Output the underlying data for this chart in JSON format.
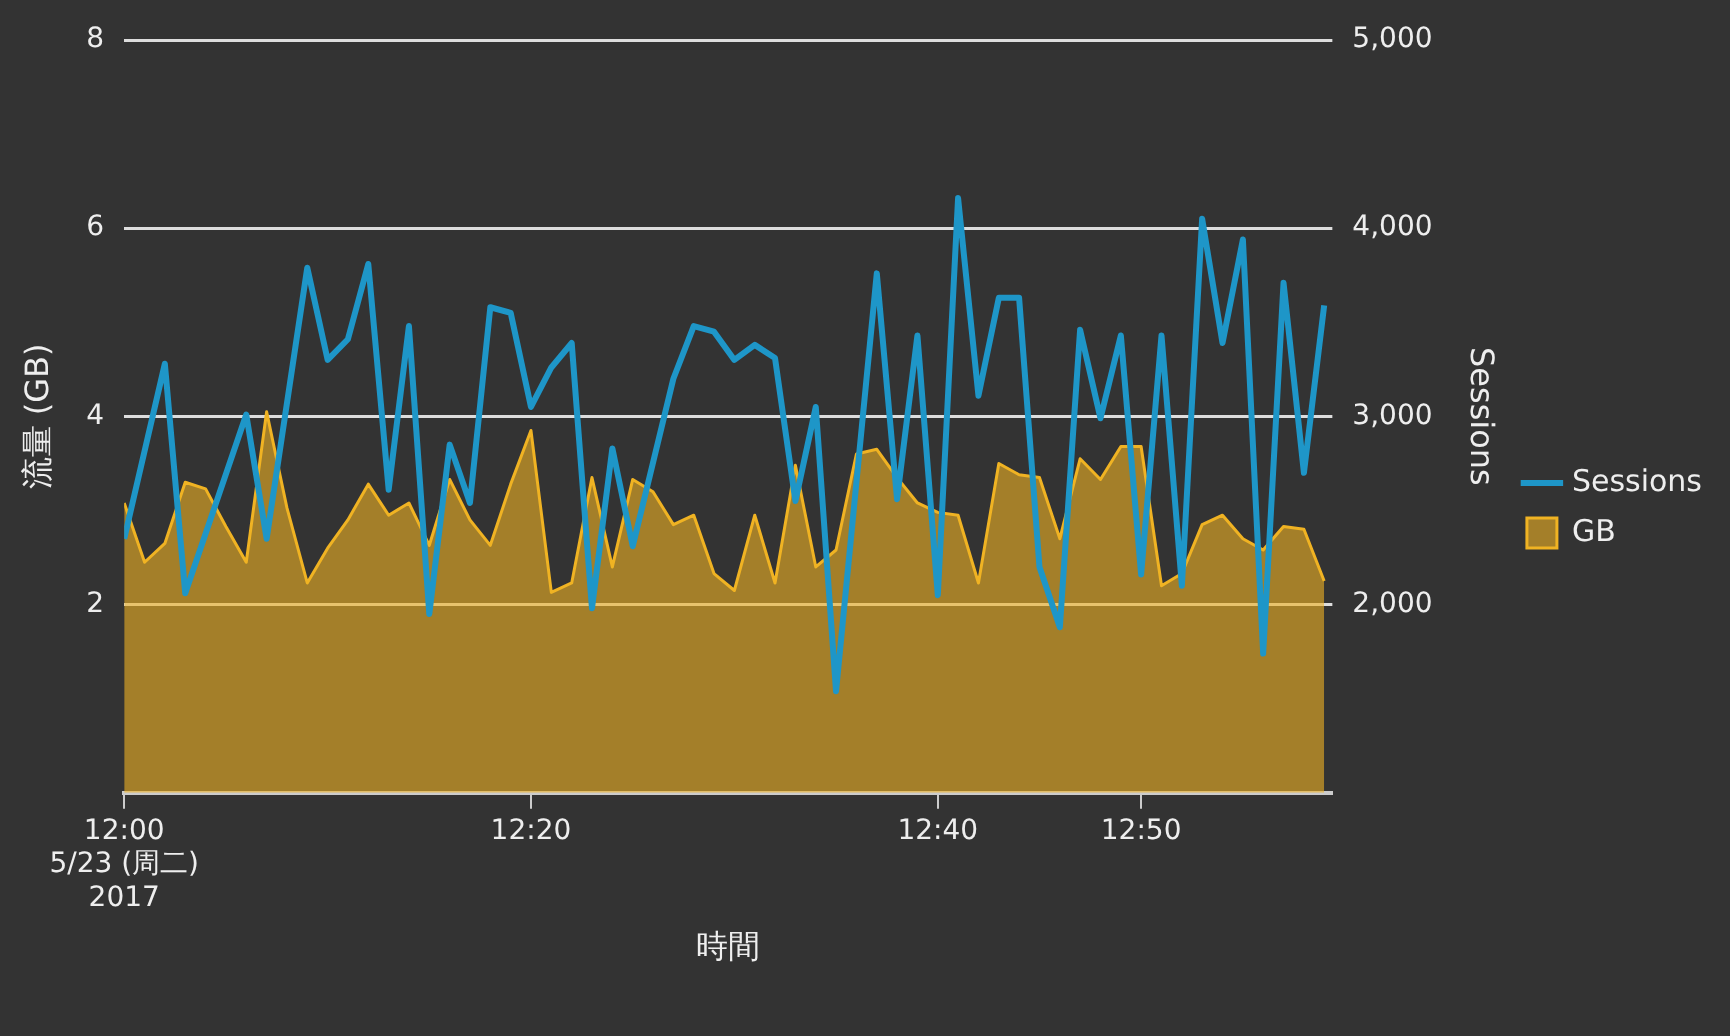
{
  "chart_data": {
    "type": "line",
    "xlabel": "時間",
    "ylabel": "流量 (GB)",
    "y2label": "Sessions",
    "xlim": [
      12,
      12.99
    ],
    "xticks": [
      {
        "value": 12,
        "label": "12:00\n5/23 (周二)\n2017"
      },
      {
        "value": 12.3333,
        "label": "12:20"
      },
      {
        "value": 12.6667,
        "label": "12:40"
      },
      {
        "value": 12.8333,
        "label": "12:50"
      }
    ],
    "ylim": [
      0,
      8
    ],
    "yticks": [
      2,
      4,
      6,
      8
    ],
    "y2lim": [
      1000,
      5000
    ],
    "y2ticks": [
      {
        "value": 2000,
        "label": "2,000"
      },
      {
        "value": 3000,
        "label": "3,000"
      },
      {
        "value": 4000,
        "label": "4,000"
      },
      {
        "value": 5000,
        "label": "5,000"
      }
    ],
    "grid": "y",
    "legend": "right",
    "marker": "none",
    "line_style": "solid",
    "series": [
      {
        "name": "Sessions",
        "type": "line",
        "axis": "y2",
        "color": "#1e96c8",
        "x": [
          12,
          12.0333,
          12.05,
          12.1,
          12.1167,
          12.15,
          12.1667,
          12.1833,
          12.2,
          12.2167,
          12.2333,
          12.25,
          12.2667,
          12.2833,
          12.3,
          12.3167,
          12.3333,
          12.35,
          12.3667,
          12.3833,
          12.4,
          12.4167,
          12.45,
          12.4667,
          12.4833,
          12.5,
          12.5167,
          12.5333,
          12.55,
          12.5667,
          12.5833,
          12.6167,
          12.6333,
          12.65,
          12.6667,
          12.6833,
          12.7,
          12.7167,
          12.7333,
          12.75,
          12.7667,
          12.7833,
          12.8,
          12.8167,
          12.8333,
          12.85,
          12.8667,
          12.8833,
          12.9,
          12.9167,
          12.9333,
          12.95,
          12.9667,
          12.9833
        ],
        "values": [
          2350,
          3280,
          2060,
          3010,
          2350,
          3790,
          3300,
          3410,
          3810,
          2610,
          3480,
          1950,
          2850,
          2540,
          3580,
          3550,
          3050,
          3260,
          3390,
          1980,
          2830,
          2310,
          3200,
          3480,
          3450,
          3300,
          3380,
          3310,
          2550,
          3050,
          1540,
          3760,
          2560,
          3430,
          2050,
          4160,
          3110,
          3630,
          3630,
          2200,
          1880,
          3460,
          2990,
          3430,
          2160,
          3430,
          2100,
          4050,
          3390,
          3940,
          1740,
          3710,
          2700,
          3590
        ]
      },
      {
        "name": "GB",
        "type": "area",
        "color": "#f0b323",
        "x": [
          12,
          12.0167,
          12.0333,
          12.05,
          12.0667,
          12.0833,
          12.1,
          12.1167,
          12.1333,
          12.15,
          12.1667,
          12.1833,
          12.2,
          12.2167,
          12.2333,
          12.25,
          12.2667,
          12.2833,
          12.3,
          12.3167,
          12.3333,
          12.35,
          12.3667,
          12.3833,
          12.4,
          12.4167,
          12.4333,
          12.45,
          12.4667,
          12.4833,
          12.5,
          12.5167,
          12.5333,
          12.55,
          12.5667,
          12.5833,
          12.6,
          12.6167,
          12.6333,
          12.65,
          12.6667,
          12.6833,
          12.7,
          12.7167,
          12.7333,
          12.75,
          12.7667,
          12.7833,
          12.8,
          12.8167,
          12.8333,
          12.85,
          12.8667,
          12.8833,
          12.9,
          12.9167,
          12.9333,
          12.95,
          12.9667,
          12.9833
        ],
        "values": [
          3.08,
          2.45,
          2.65,
          3.3,
          3.23,
          2.83,
          2.45,
          4.05,
          3.03,
          2.23,
          2.6,
          2.9,
          3.28,
          2.95,
          3.08,
          2.63,
          3.33,
          2.9,
          2.63,
          3.28,
          3.85,
          2.13,
          2.23,
          3.35,
          2.4,
          3.33,
          3.2,
          2.85,
          2.95,
          2.33,
          2.15,
          2.95,
          2.23,
          3.48,
          2.4,
          2.58,
          3.6,
          3.65,
          3.35,
          3.08,
          2.98,
          2.95,
          2.23,
          3.5,
          3.38,
          3.35,
          2.7,
          3.55,
          3.33,
          3.68,
          3.68,
          2.2,
          2.33,
          2.85,
          2.95,
          2.7,
          2.58,
          2.83,
          2.8,
          2.25
        ]
      }
    ]
  }
}
